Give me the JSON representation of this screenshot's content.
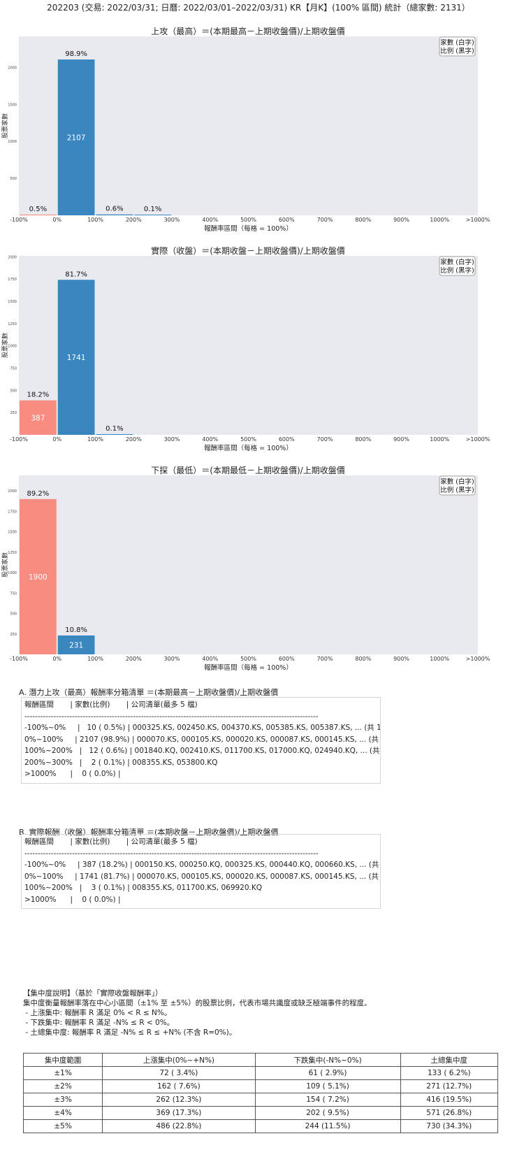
{
  "header": {
    "title": "202203 (交易: 2022/03/31; 日曆: 2022/03/01–2022/03/31) KR【月K】(100% 區間) 統計（總家數: 2131）"
  },
  "colors": {
    "up": "#3a87c0",
    "down": "#f88c80",
    "plot_bg": "#e9e9f0"
  },
  "chart_data": [
    {
      "type": "bar",
      "title": "上攻（最高）＝(本期最高－上期收盤價)/上期收盤價",
      "xlabel": "報酬率區間（每格 = 100%）",
      "ylabel": "股票家數",
      "legend": [
        "家數 (白字)",
        "比例 (黑字)"
      ],
      "legend_position": "top-right",
      "x_ticks": [
        "-100%",
        "0%",
        "100%",
        "200%",
        "300%",
        "400%",
        "500%",
        "600%",
        "700%",
        "800%",
        "900%",
        "1000%",
        ">1000%"
      ],
      "y_ticks": [
        500,
        1000,
        1500,
        2000
      ],
      "ylim": [
        0,
        2420
      ],
      "bars": [
        {
          "bin": "-100%~0%",
          "count": 10,
          "pct": "0.5%",
          "color": "down",
          "count_label": ""
        },
        {
          "bin": "0%~100%",
          "count": 2107,
          "pct": "98.9%",
          "color": "up",
          "count_label": "2107"
        },
        {
          "bin": "100%~200%",
          "count": 12,
          "pct": "0.6%",
          "color": "up",
          "count_label": ""
        },
        {
          "bin": "200%~300%",
          "count": 2,
          "pct": "0.1%",
          "color": "up",
          "count_label": ""
        }
      ]
    },
    {
      "type": "bar",
      "title": "實際（收盤）＝(本期收盤－上期收盤價)/上期收盤價",
      "xlabel": "報酬率區間（每格 = 100%）",
      "ylabel": "股票家數",
      "legend": [
        "家數 (白字)",
        "比例 (黑字)"
      ],
      "legend_position": "top-right",
      "x_ticks": [
        "-100%",
        "0%",
        "100%",
        "200%",
        "300%",
        "400%",
        "500%",
        "600%",
        "700%",
        "800%",
        "900%",
        "1000%",
        ">1000%"
      ],
      "y_ticks": [
        250,
        500,
        750,
        1000,
        1250,
        1500,
        1750,
        2000
      ],
      "ylim": [
        0,
        2010
      ],
      "bars": [
        {
          "bin": "-100%~0%",
          "count": 387,
          "pct": "18.2%",
          "color": "down",
          "count_label": "387"
        },
        {
          "bin": "0%~100%",
          "count": 1741,
          "pct": "81.7%",
          "color": "up",
          "count_label": "1741"
        },
        {
          "bin": "100%~200%",
          "count": 3,
          "pct": "0.1%",
          "color": "up",
          "count_label": ""
        }
      ]
    },
    {
      "type": "bar",
      "title": "下探（最低）＝(本期最低－上期收盤價)/上期收盤價",
      "xlabel": "報酬率區間（每格 = 100%）",
      "ylabel": "股票家數",
      "legend": [
        "家數 (白字)",
        "比例 (黑字)"
      ],
      "legend_position": "top-right",
      "x_ticks": [
        "-100%",
        "0%",
        "100%",
        "200%",
        "300%",
        "400%",
        "500%",
        "600%",
        "700%",
        "800%",
        "900%",
        "1000%",
        ">1000%"
      ],
      "y_ticks": [
        250,
        500,
        750,
        1000,
        1250,
        1500,
        1750,
        2000
      ],
      "ylim": [
        0,
        2190
      ],
      "bars": [
        {
          "bin": "-100%~0%",
          "count": 1900,
          "pct": "89.2%",
          "color": "down",
          "count_label": "1900"
        },
        {
          "bin": "0%~100%",
          "count": 231,
          "pct": "10.8%",
          "color": "up",
          "count_label": "231"
        }
      ]
    }
  ],
  "list_a": {
    "title": "A. 潛力上攻（最高）報酬率分箱清單 ＝(本期最高－上期收盤價)/上期收盤價",
    "lines": [
      "報酬區間       | 家數(比例)       | 公司清單(最多 5 檔)",
      "---------------------------------------------------------------------------------------------------------------",
      "-100%~0%     |   10 ( 0.5%) | 000325.KS, 002450.KS, 004370.KS, 005385.KS, 005387.KS, ... (共 10 檔)",
      "0%~100%     | 2107 (98.9%) | 000070.KS, 000105.KS, 000020.KS, 000087.KS, 000145.KS, ... (共 2107 檔)",
      "100%~200%   |   12 ( 0.6%) | 001840.KQ, 002410.KS, 011700.KS, 017000.KQ, 024940.KQ, ... (共 12 檔)",
      "200%~300%   |    2 ( 0.1%) | 008355.KS, 053800.KQ",
      ">1000%      |    0 ( 0.0%) |"
    ]
  },
  "list_b": {
    "title": "B. 實際報酬（收盤）報酬率分箱清單 ＝(本期收盤－上期收盤價)/上期收盤價",
    "lines": [
      "報酬區間       | 家數(比例)       | 公司清單(最多 5 檔)",
      "---------------------------------------------------------------------------------------------------------------",
      "-100%~0%     | 387 (18.2%) | 000150.KS, 000250.KQ, 000325.KS, 000440.KQ, 000660.KS, ... (共 387 檔)",
      "0%~100%     | 1741 (81.7%) | 000070.KS, 000105.KS, 000020.KS, 000087.KS, 000145.KS, ... (共 1741 檔)",
      "100%~200%   |    3 ( 0.1%) | 008355.KS, 011700.KS, 069920.KQ",
      ">1000%      |    0 ( 0.0%) |"
    ]
  },
  "concentration": {
    "title": "【集中度說明】（基於「實際收盤報酬率」）",
    "desc": "集中度衡量報酬率落在中心小區間（±1% 至 ±5%）的股票比例，代表市場共識度或缺乏極端事件的程度。",
    "bullets": [
      " - 上漲集中: 報酬率 R 滿足 0% < R ≤ N%。",
      " - 下跌集中: 報酬率 R 滿足 -N% ≤ R < 0%。",
      " - 土總集中度: 報酬率 R 滿足 -N% ≤ R ≤ +N% (不含 R=0%)。"
    ],
    "headers": [
      "集中度範圍",
      "上漲集中(0%~+N%)",
      "下跌集中(-N%~0%)",
      "土總集中度"
    ],
    "rows": [
      [
        "±1%",
        "72 ( 3.4%)",
        "61 ( 2.9%)",
        "133 ( 6.2%)"
      ],
      [
        "±2%",
        "162 ( 7.6%)",
        "109 ( 5.1%)",
        "271 (12.7%)"
      ],
      [
        "±3%",
        "262 (12.3%)",
        "154 ( 7.2%)",
        "416 (19.5%)"
      ],
      [
        "±4%",
        "369 (17.3%)",
        "202 ( 9.5%)",
        "571 (26.8%)"
      ],
      [
        "±5%",
        "486 (22.8%)",
        "244 (11.5%)",
        "730 (34.3%)"
      ]
    ]
  }
}
